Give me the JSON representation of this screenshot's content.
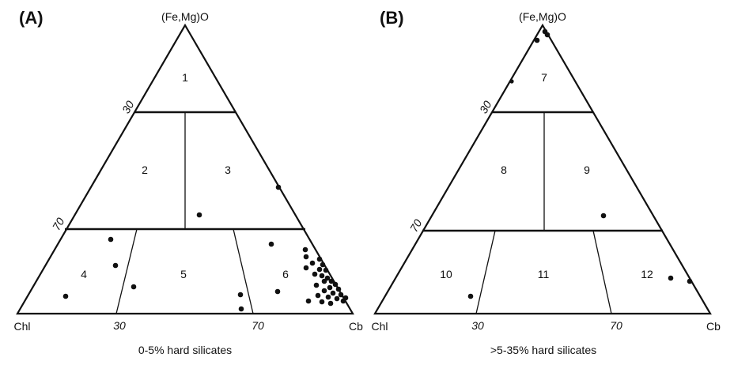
{
  "panels": [
    {
      "label": "(A)",
      "apex_top": "(Fe,Mg)O",
      "apex_left": "Chl",
      "apex_right": "Cb",
      "left_ticks": [
        "30",
        "70"
      ],
      "base_ticks": [
        "30",
        "70"
      ],
      "fields": [
        "1",
        "2",
        "3",
        "4",
        "5",
        "6"
      ],
      "caption": "0-5% hard silicates",
      "points_count": 38
    },
    {
      "label": "(B)",
      "apex_top": "(Fe,Mg)O",
      "apex_left": "Chl",
      "apex_right": "Cb",
      "left_ticks": [
        "30",
        "70"
      ],
      "base_ticks": [
        "30",
        "70"
      ],
      "fields": [
        "7",
        "8",
        "9",
        "10",
        "11",
        "12"
      ],
      "caption": ">5-35% hard silicates",
      "points_count": 8
    }
  ]
}
